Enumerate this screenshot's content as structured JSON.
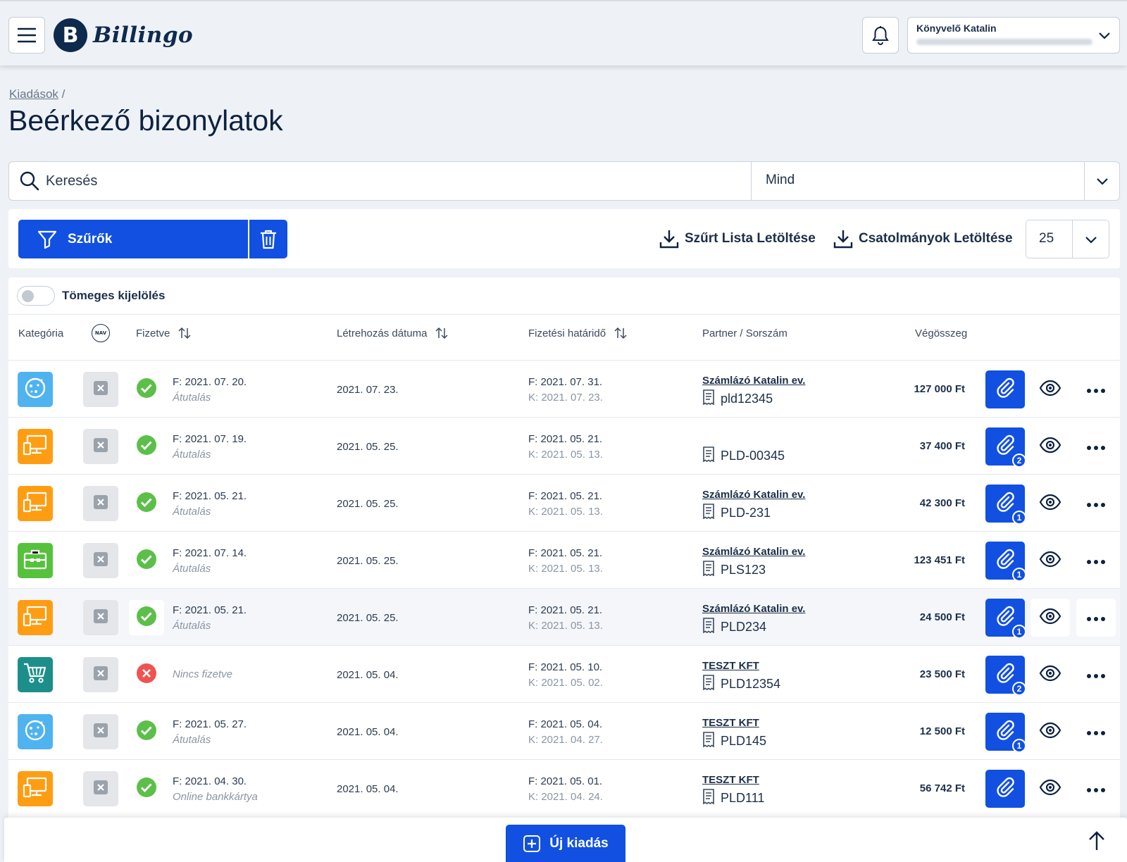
{
  "header": {
    "logo_mark": "B",
    "logo_text": "Billingo",
    "user_name": "Könyvelő Katalin"
  },
  "breadcrumb": {
    "parent": "Kiadások",
    "separator": "/"
  },
  "page_title": "Beérkező bizonylatok",
  "search": {
    "placeholder": "Keresés",
    "filter_value": "Mind"
  },
  "toolbar": {
    "filters_label": "Szűrők",
    "download_filtered_label": "Szűrt Lista Letöltése",
    "download_attachments_label": "Csatolmányok Letöltése",
    "per_page": "25"
  },
  "bulk_select_label": "Tömeges kijelölés",
  "columns": {
    "category": "Kategória",
    "nav": "NAV",
    "paid": "Fizetve",
    "created": "Létrehozás dátuma",
    "due": "Fizetési határidő",
    "partner": "Partner / Sorszám",
    "total": "Végösszeg"
  },
  "colors": {
    "primary": "#1150e1",
    "paid_green": "#5cbf4a",
    "unpaid_red": "#ef5350",
    "cat_blue": "#4fb3f0",
    "cat_orange": "#ff9d12",
    "cat_green": "#56c23c",
    "cat_teal": "#1c8f8b"
  },
  "rows": [
    {
      "category_icon": "cookie-icon",
      "category_color": "#4fb3f0",
      "paid": true,
      "pay_date": "F: 2021. 07. 20.",
      "pay_method": "Átutalás",
      "created": "2021. 07. 23.",
      "due_f": "F: 2021. 07. 31.",
      "due_k": "K: 2021. 07. 23.",
      "partner": "Számlázó Katalin ev.",
      "serial": "pld12345",
      "total": "127 000 Ft",
      "attachments": ""
    },
    {
      "category_icon": "computer-icon",
      "category_color": "#ff9d12",
      "paid": true,
      "pay_date": "F: 2021. 07. 19.",
      "pay_method": "Átutalás",
      "created": "2021. 05. 25.",
      "due_f": "F: 2021. 05. 21.",
      "due_k": "K: 2021. 05. 13.",
      "partner": "",
      "serial": "PLD-00345",
      "total": "37 400 Ft",
      "attachments": "2"
    },
    {
      "category_icon": "computer-icon",
      "category_color": "#ff9d12",
      "paid": true,
      "pay_date": "F: 2021. 05. 21.",
      "pay_method": "Átutalás",
      "created": "2021. 05. 25.",
      "due_f": "F: 2021. 05. 21.",
      "due_k": "K: 2021. 05. 13.",
      "partner": "Számlázó Katalin ev.",
      "serial": "PLD-231",
      "total": "42 300 Ft",
      "attachments": "1"
    },
    {
      "category_icon": "briefcase-icon",
      "category_color": "#56c23c",
      "paid": true,
      "pay_date": "F: 2021. 07. 14.",
      "pay_method": "Átutalás",
      "created": "2021. 05. 25.",
      "due_f": "F: 2021. 05. 21.",
      "due_k": "K: 2021. 05. 13.",
      "partner": "Számlázó Katalin ev.",
      "serial": "PLS123",
      "total": "123 451 Ft",
      "attachments": "1"
    },
    {
      "category_icon": "computer-icon",
      "category_color": "#ff9d12",
      "paid": true,
      "pay_date": "F: 2021. 05. 21.",
      "pay_method": "Átutalás",
      "created": "2021. 05. 25.",
      "due_f": "F: 2021. 05. 21.",
      "due_k": "K: 2021. 05. 13.",
      "partner": "Számlázó Katalin ev.",
      "serial": "PLD234",
      "total": "24 500 Ft",
      "attachments": "1"
    },
    {
      "category_icon": "cart-icon",
      "category_color": "#1c8f8b",
      "paid": false,
      "pay_date": "",
      "pay_method": "Nincs fizetve",
      "created": "2021. 05. 04.",
      "due_f": "F: 2021. 05. 10.",
      "due_k": "K: 2021. 05. 02.",
      "partner": "TESZT KFT",
      "serial": "PLD12354",
      "total": "23 500 Ft",
      "attachments": "2"
    },
    {
      "category_icon": "cookie-icon",
      "category_color": "#4fb3f0",
      "paid": true,
      "pay_date": "F: 2021. 05. 27.",
      "pay_method": "Átutalás",
      "created": "2021. 05. 04.",
      "due_f": "F: 2021. 05. 04.",
      "due_k": "K: 2021. 04. 27.",
      "partner": "TESZT KFT",
      "serial": "PLD145",
      "total": "12 500 Ft",
      "attachments": "1"
    },
    {
      "category_icon": "computer-icon",
      "category_color": "#ff9d12",
      "paid": true,
      "pay_date": "F: 2021. 04. 30.",
      "pay_method": "Online bankkártya",
      "created": "2021. 05. 04.",
      "due_f": "F: 2021. 05. 01.",
      "due_k": "K: 2021. 04. 24.",
      "partner": "TESZT KFT",
      "serial": "PLD111",
      "total": "56 742 Ft",
      "attachments": ""
    }
  ],
  "bottom": {
    "new_expense_label": "Új kiadás"
  }
}
